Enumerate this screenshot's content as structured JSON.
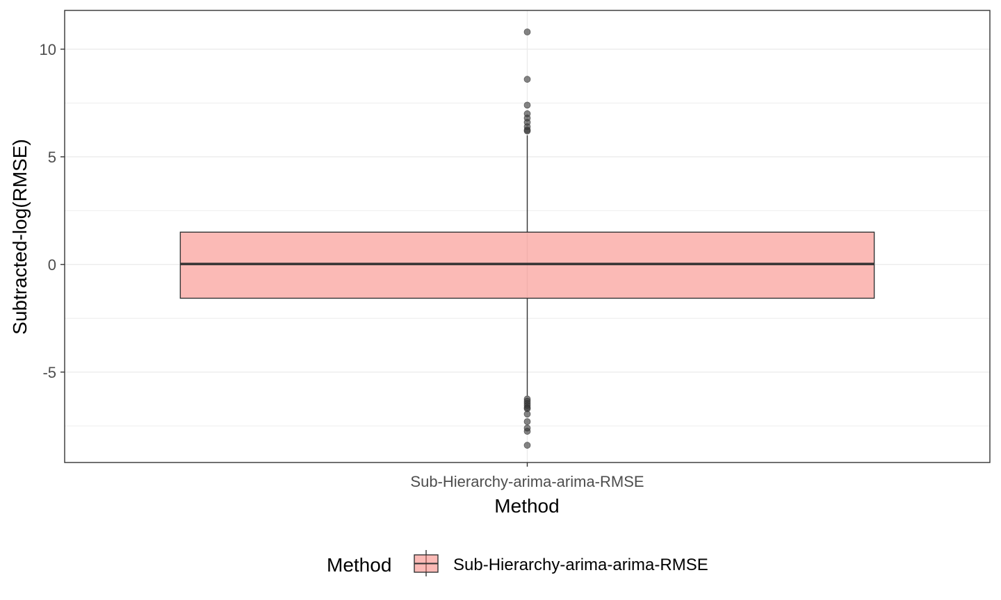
{
  "chart_data": {
    "type": "boxplot",
    "title": "",
    "xlabel": "Method",
    "ylabel": "Subtracted-log(RMSE)",
    "categories": [
      "Sub-Hierarchy-arima-arima-RMSE"
    ],
    "ylim": [
      -9.2,
      11.8
    ],
    "y_ticks": [
      -5,
      0,
      5,
      10
    ],
    "y_tick_labels": [
      "-5",
      "0",
      "5",
      "10"
    ],
    "grid": true,
    "legend": {
      "position": "bottom",
      "title": "Method",
      "entries": [
        "Sub-Hierarchy-arima-arima-RMSE"
      ]
    },
    "colors": {
      "box_fill": "#f8766d",
      "box_fill_opacity": 0.5,
      "outlier": "#333333",
      "grid": "#ebebeb",
      "border": "#333333"
    },
    "boxes": [
      {
        "category": "Sub-Hierarchy-arima-arima-RMSE",
        "q1": -1.57,
        "median": 0.02,
        "q3": 1.5,
        "whisker_low": -6.1,
        "whisker_high": 6.0,
        "outliers": [
          10.8,
          8.6,
          7.4,
          7.0,
          6.8,
          6.6,
          6.4,
          6.25,
          6.2,
          -6.25,
          -6.35,
          -6.45,
          -6.55,
          -6.65,
          -6.7,
          -6.95,
          -7.3,
          -7.6,
          -7.75,
          -8.4
        ]
      }
    ]
  }
}
